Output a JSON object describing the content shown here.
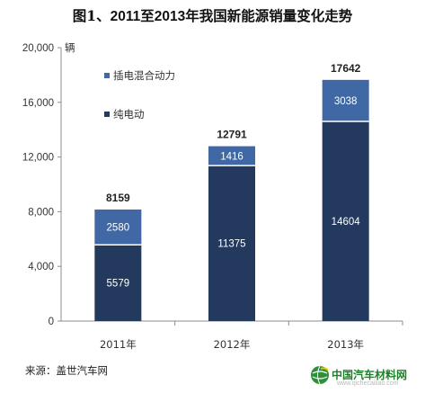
{
  "title_prefix": "图1、",
  "title_main": "2011至2013年我国新能源销量变化走势",
  "source": "来源：盖世汽车网",
  "watermark": {
    "name": "中国汽车材料网",
    "url": "www.qichecailiao.com",
    "url_hint": "auto.gasgoo.com"
  },
  "colors": {
    "bev": "#23395d",
    "phev": "#4068a5",
    "axis": "#8c8c8c",
    "grid": "#d4d4d4"
  },
  "chart_data": {
    "type": "bar",
    "stacked": true,
    "categories": [
      "2011年",
      "2012年",
      "2013年"
    ],
    "series": [
      {
        "name": "纯电动",
        "values": [
          5579,
          11375,
          14604
        ]
      },
      {
        "name": "插电混合动力",
        "values": [
          2580,
          1416,
          3038
        ]
      }
    ],
    "totals": [
      8159,
      12791,
      17642
    ],
    "ylim": [
      0,
      20000
    ],
    "yticks": [
      0,
      4000,
      8000,
      12000,
      16000,
      20000
    ],
    "ytick_labels": [
      "0",
      "4,000",
      "8,000",
      "12,000",
      "16,000",
      "20,000"
    ],
    "ylabel": "辆",
    "grid": false,
    "legend": [
      "插电混合动力",
      "纯电动"
    ],
    "legend_position": "top-left"
  }
}
